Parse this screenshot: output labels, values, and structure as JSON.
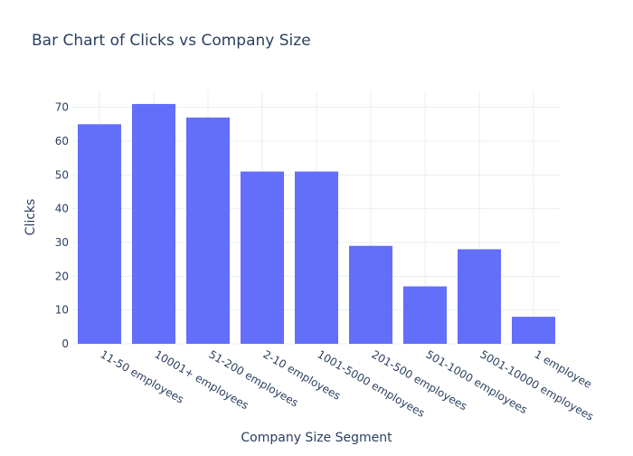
{
  "chart_data": {
    "type": "bar",
    "title": "Bar Chart of Clicks vs Company Size",
    "xlabel": "Company Size Segment",
    "ylabel": "Clicks",
    "categories": [
      "11-50 employees",
      "10001+ employees",
      "51-200 employees",
      "2-10 employees",
      "1001-5000 employees",
      "201-500 employees",
      "501-1000 employees",
      "5001-10000 employees",
      "1 employee"
    ],
    "values": [
      65,
      71,
      67,
      51,
      51,
      29,
      17,
      28,
      8
    ],
    "ylim": [
      0,
      75
    ],
    "yticks": [
      0,
      10,
      20,
      30,
      40,
      50,
      60,
      70
    ],
    "grid": true,
    "legend": "none",
    "colors": {
      "bar": "#636efa",
      "grid": "#ebedf2",
      "axis_line": "#ebedf2",
      "text": "#2a3f5f",
      "title": "#2a3f5f"
    }
  }
}
